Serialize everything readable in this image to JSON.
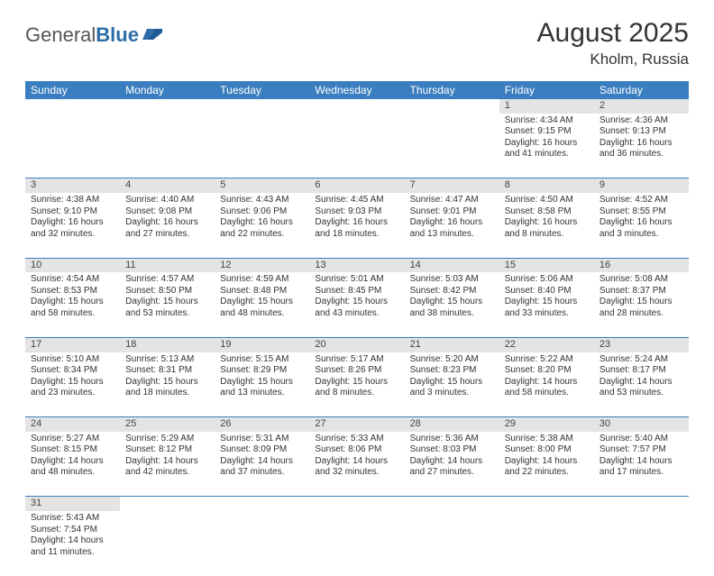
{
  "logo": {
    "text1": "General",
    "text2": "Blue"
  },
  "title": "August 2025",
  "location": "Kholm, Russia",
  "header_bg": "#3a7ebf",
  "daynum_bg": "#e4e4e4",
  "row_border": "#3a7ebf",
  "days": [
    "Sunday",
    "Monday",
    "Tuesday",
    "Wednesday",
    "Thursday",
    "Friday",
    "Saturday"
  ],
  "weeks": [
    [
      null,
      null,
      null,
      null,
      null,
      {
        "n": "1",
        "sr": "4:34 AM",
        "ss": "9:15 PM",
        "dl": "16 hours and 41 minutes."
      },
      {
        "n": "2",
        "sr": "4:36 AM",
        "ss": "9:13 PM",
        "dl": "16 hours and 36 minutes."
      }
    ],
    [
      {
        "n": "3",
        "sr": "4:38 AM",
        "ss": "9:10 PM",
        "dl": "16 hours and 32 minutes."
      },
      {
        "n": "4",
        "sr": "4:40 AM",
        "ss": "9:08 PM",
        "dl": "16 hours and 27 minutes."
      },
      {
        "n": "5",
        "sr": "4:43 AM",
        "ss": "9:06 PM",
        "dl": "16 hours and 22 minutes."
      },
      {
        "n": "6",
        "sr": "4:45 AM",
        "ss": "9:03 PM",
        "dl": "16 hours and 18 minutes."
      },
      {
        "n": "7",
        "sr": "4:47 AM",
        "ss": "9:01 PM",
        "dl": "16 hours and 13 minutes."
      },
      {
        "n": "8",
        "sr": "4:50 AM",
        "ss": "8:58 PM",
        "dl": "16 hours and 8 minutes."
      },
      {
        "n": "9",
        "sr": "4:52 AM",
        "ss": "8:55 PM",
        "dl": "16 hours and 3 minutes."
      }
    ],
    [
      {
        "n": "10",
        "sr": "4:54 AM",
        "ss": "8:53 PM",
        "dl": "15 hours and 58 minutes."
      },
      {
        "n": "11",
        "sr": "4:57 AM",
        "ss": "8:50 PM",
        "dl": "15 hours and 53 minutes."
      },
      {
        "n": "12",
        "sr": "4:59 AM",
        "ss": "8:48 PM",
        "dl": "15 hours and 48 minutes."
      },
      {
        "n": "13",
        "sr": "5:01 AM",
        "ss": "8:45 PM",
        "dl": "15 hours and 43 minutes."
      },
      {
        "n": "14",
        "sr": "5:03 AM",
        "ss": "8:42 PM",
        "dl": "15 hours and 38 minutes."
      },
      {
        "n": "15",
        "sr": "5:06 AM",
        "ss": "8:40 PM",
        "dl": "15 hours and 33 minutes."
      },
      {
        "n": "16",
        "sr": "5:08 AM",
        "ss": "8:37 PM",
        "dl": "15 hours and 28 minutes."
      }
    ],
    [
      {
        "n": "17",
        "sr": "5:10 AM",
        "ss": "8:34 PM",
        "dl": "15 hours and 23 minutes."
      },
      {
        "n": "18",
        "sr": "5:13 AM",
        "ss": "8:31 PM",
        "dl": "15 hours and 18 minutes."
      },
      {
        "n": "19",
        "sr": "5:15 AM",
        "ss": "8:29 PM",
        "dl": "15 hours and 13 minutes."
      },
      {
        "n": "20",
        "sr": "5:17 AM",
        "ss": "8:26 PM",
        "dl": "15 hours and 8 minutes."
      },
      {
        "n": "21",
        "sr": "5:20 AM",
        "ss": "8:23 PM",
        "dl": "15 hours and 3 minutes."
      },
      {
        "n": "22",
        "sr": "5:22 AM",
        "ss": "8:20 PM",
        "dl": "14 hours and 58 minutes."
      },
      {
        "n": "23",
        "sr": "5:24 AM",
        "ss": "8:17 PM",
        "dl": "14 hours and 53 minutes."
      }
    ],
    [
      {
        "n": "24",
        "sr": "5:27 AM",
        "ss": "8:15 PM",
        "dl": "14 hours and 48 minutes."
      },
      {
        "n": "25",
        "sr": "5:29 AM",
        "ss": "8:12 PM",
        "dl": "14 hours and 42 minutes."
      },
      {
        "n": "26",
        "sr": "5:31 AM",
        "ss": "8:09 PM",
        "dl": "14 hours and 37 minutes."
      },
      {
        "n": "27",
        "sr": "5:33 AM",
        "ss": "8:06 PM",
        "dl": "14 hours and 32 minutes."
      },
      {
        "n": "28",
        "sr": "5:36 AM",
        "ss": "8:03 PM",
        "dl": "14 hours and 27 minutes."
      },
      {
        "n": "29",
        "sr": "5:38 AM",
        "ss": "8:00 PM",
        "dl": "14 hours and 22 minutes."
      },
      {
        "n": "30",
        "sr": "5:40 AM",
        "ss": "7:57 PM",
        "dl": "14 hours and 17 minutes."
      }
    ],
    [
      {
        "n": "31",
        "sr": "5:43 AM",
        "ss": "7:54 PM",
        "dl": "14 hours and 11 minutes."
      },
      null,
      null,
      null,
      null,
      null,
      null
    ]
  ],
  "labels": {
    "sunrise": "Sunrise:",
    "sunset": "Sunset:",
    "daylight": "Daylight:"
  }
}
